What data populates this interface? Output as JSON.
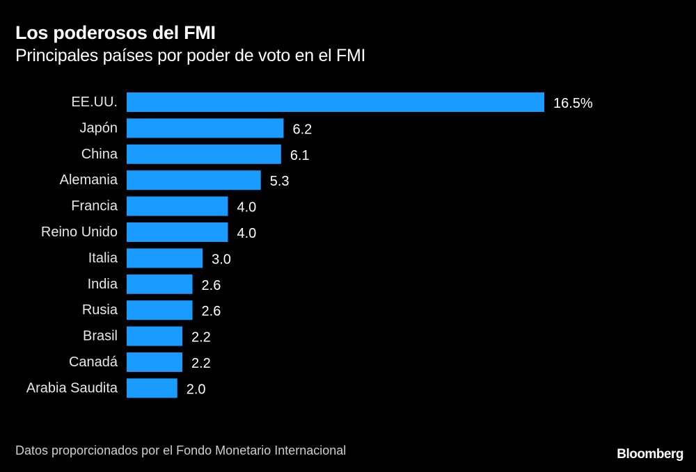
{
  "header": {
    "title": "Los poderosos del FMI",
    "subtitle": "Principales países por poder de voto en el FMI"
  },
  "footer": {
    "source": "Datos proporcionados por el Fondo Monetario Internacional",
    "brand": "Bloomberg"
  },
  "colors": {
    "background": "#000000",
    "bar": "#1a9bff",
    "text": "#ffffff"
  },
  "chart_data": {
    "type": "bar",
    "orientation": "horizontal",
    "title": "Los poderosos del FMI",
    "subtitle": "Principales países por poder de voto en el FMI",
    "xlabel": "",
    "ylabel": "",
    "unit": "%",
    "grid": false,
    "legend": "none",
    "xlim": [
      0,
      16.5
    ],
    "categories": [
      "EE.UU.",
      "Japón",
      "China",
      "Alemania",
      "Francia",
      "Reino Unido",
      "Italia",
      "India",
      "Rusia",
      "Brasil",
      "Canadá",
      "Arabia Saudita"
    ],
    "values": [
      16.5,
      6.2,
      6.1,
      5.3,
      4.0,
      4.0,
      3.0,
      2.6,
      2.6,
      2.2,
      2.2,
      2.0
    ],
    "value_labels": [
      "16.5%",
      "6.2",
      "6.1",
      "5.3",
      "4.0",
      "4.0",
      "3.0",
      "2.6",
      "2.6",
      "2.2",
      "2.2",
      "2.0"
    ]
  }
}
